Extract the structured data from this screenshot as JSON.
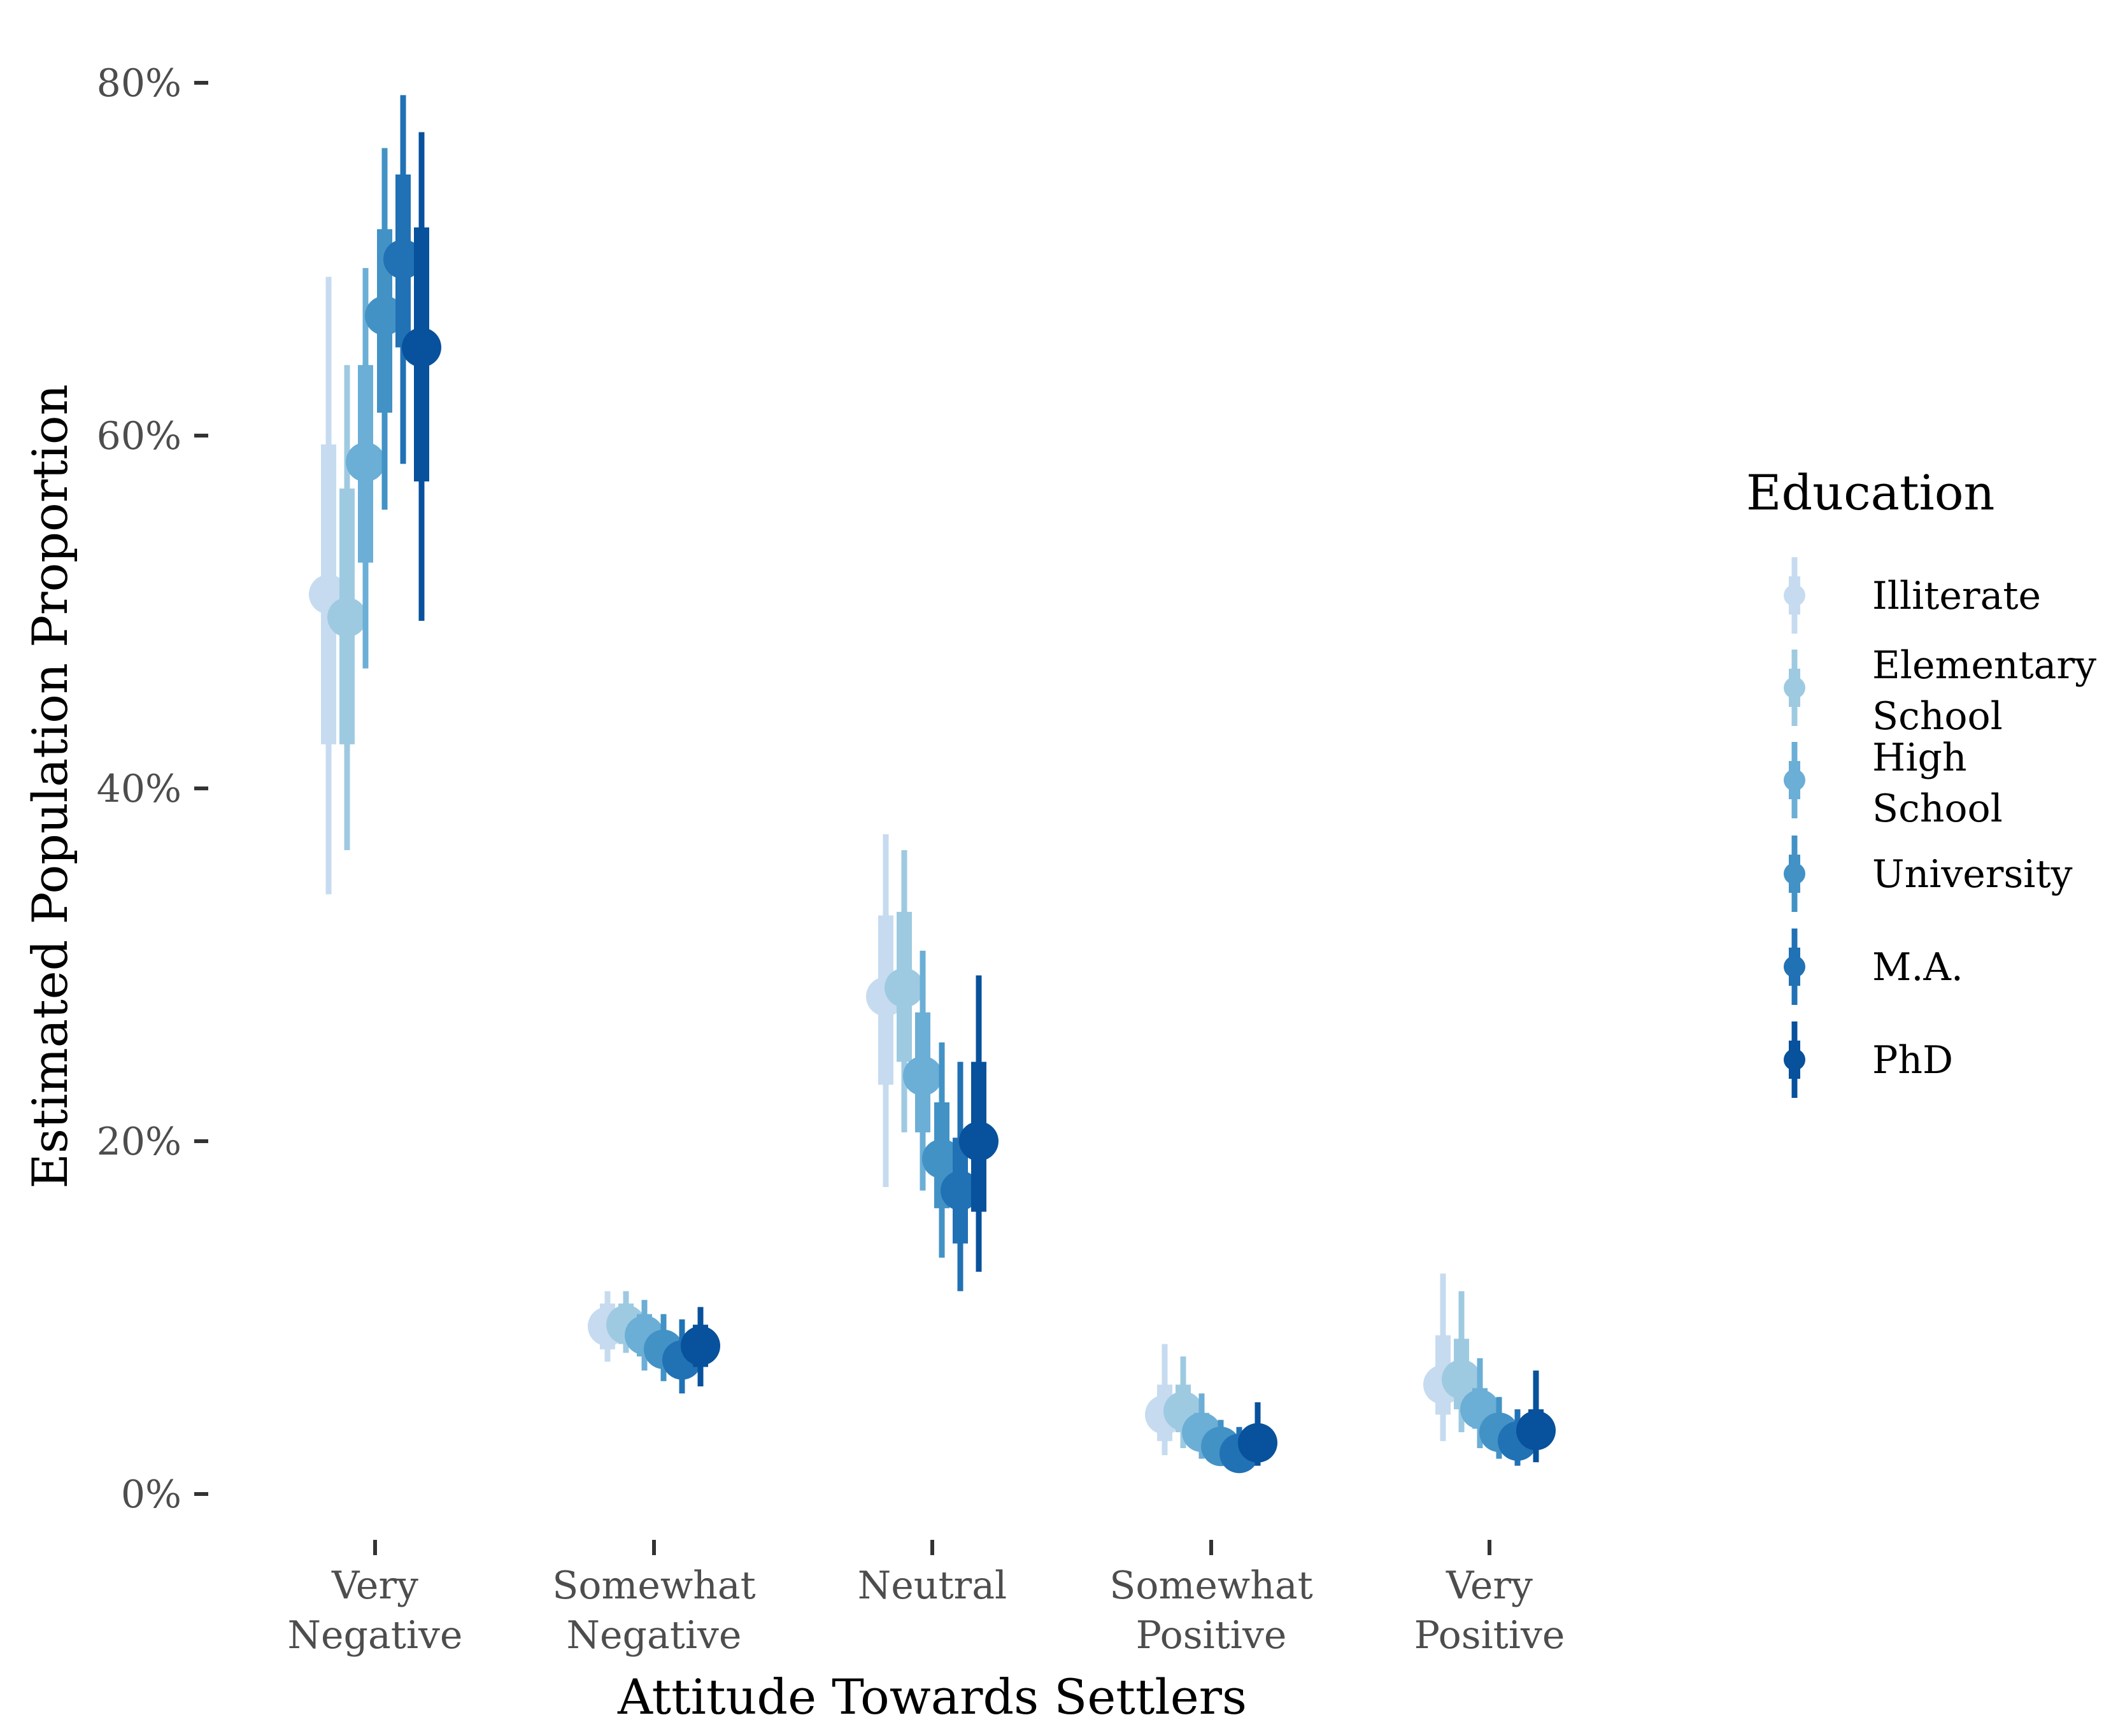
{
  "chart_data": {
    "type": "pointrange",
    "xlabel": "Attitude Towards Settlers",
    "ylabel": "Estimated Population Proportion",
    "ylim": [
      0,
      80
    ],
    "y_ticks": [
      "0%",
      "20%",
      "40%",
      "60%",
      "80%"
    ],
    "y_tick_values": [
      0,
      20,
      40,
      60,
      80
    ],
    "categories": [
      [
        "Very",
        "Negative"
      ],
      [
        "Somewhat",
        "Negative"
      ],
      [
        "Neutral"
      ],
      [
        "Somewhat",
        "Positive"
      ],
      [
        "Very",
        "Positive"
      ]
    ],
    "grid": false,
    "legend": {
      "title": "Education",
      "position": "right",
      "entries": [
        [
          "Illiterate"
        ],
        [
          "Elementary",
          "School"
        ],
        [
          "High",
          "School"
        ],
        [
          "University"
        ],
        [
          "M.A."
        ],
        [
          "PhD"
        ]
      ]
    },
    "series": [
      {
        "name": "Illiterate",
        "color": "#c6dbef",
        "values": [
          51.0,
          9.5,
          28.2,
          4.5,
          6.2
        ],
        "inner": [
          [
            42.5,
            59.5
          ],
          [
            8.2,
            10.8
          ],
          [
            23.2,
            32.8
          ],
          [
            3.0,
            6.2
          ],
          [
            4.5,
            9.0
          ]
        ],
        "outer": [
          [
            34.0,
            69.0
          ],
          [
            7.5,
            11.5
          ],
          [
            17.4,
            37.4
          ],
          [
            2.2,
            8.5
          ],
          [
            3.0,
            12.5
          ]
        ]
      },
      {
        "name": "Elementary School",
        "color": "#9ecae1",
        "values": [
          49.7,
          9.6,
          28.7,
          4.7,
          6.5
        ],
        "inner": [
          [
            42.5,
            57.0
          ],
          [
            8.5,
            10.8
          ],
          [
            24.5,
            33.0
          ],
          [
            3.5,
            6.2
          ],
          [
            4.8,
            8.8
          ]
        ],
        "outer": [
          [
            36.5,
            64.0
          ],
          [
            8.0,
            11.5
          ],
          [
            20.5,
            36.5
          ],
          [
            2.6,
            7.8
          ],
          [
            3.5,
            11.5
          ]
        ]
      },
      {
        "name": "High School",
        "color": "#6baed6",
        "values": [
          58.5,
          9.0,
          23.7,
          3.5,
          4.8
        ],
        "inner": [
          [
            52.8,
            64.0
          ],
          [
            7.8,
            10.2
          ],
          [
            20.5,
            27.3
          ],
          [
            2.6,
            4.6
          ],
          [
            3.7,
            6.0
          ]
        ],
        "outer": [
          [
            46.8,
            69.5
          ],
          [
            7.0,
            11.0
          ],
          [
            17.2,
            30.8
          ],
          [
            2.0,
            5.7
          ],
          [
            2.6,
            7.7
          ]
        ]
      },
      {
        "name": "University",
        "color": "#4292c6",
        "values": [
          66.8,
          8.2,
          19.0,
          2.7,
          3.5
        ],
        "inner": [
          [
            61.3,
            71.7
          ],
          [
            7.2,
            9.2
          ],
          [
            16.2,
            22.2
          ],
          [
            2.0,
            3.5
          ],
          [
            2.6,
            4.4
          ]
        ],
        "outer": [
          [
            55.8,
            76.3
          ],
          [
            6.4,
            10.2
          ],
          [
            13.4,
            25.6
          ],
          [
            1.6,
            4.2
          ],
          [
            2.0,
            5.5
          ]
        ]
      },
      {
        "name": "M.A.",
        "color": "#2171b5",
        "values": [
          70.0,
          7.6,
          17.2,
          2.3,
          3.0
        ],
        "inner": [
          [
            65.0,
            74.8
          ],
          [
            6.6,
            8.6
          ],
          [
            14.2,
            20.2
          ],
          [
            1.7,
            3.0
          ],
          [
            2.2,
            3.8
          ]
        ],
        "outer": [
          [
            58.4,
            79.3
          ],
          [
            5.7,
            9.9
          ],
          [
            11.5,
            24.5
          ],
          [
            1.4,
            3.8
          ],
          [
            1.6,
            4.8
          ]
        ]
      },
      {
        "name": "PhD",
        "color": "#08519c",
        "values": [
          65.0,
          8.4,
          20.0,
          2.9,
          3.6
        ],
        "inner": [
          [
            57.4,
            71.8
          ],
          [
            7.2,
            9.6
          ],
          [
            16.0,
            24.5
          ],
          [
            2.2,
            3.8
          ],
          [
            2.7,
            4.8
          ]
        ],
        "outer": [
          [
            49.5,
            77.2
          ],
          [
            6.1,
            10.6
          ],
          [
            12.6,
            29.4
          ],
          [
            1.6,
            5.2
          ],
          [
            1.8,
            7.0
          ]
        ]
      }
    ]
  }
}
